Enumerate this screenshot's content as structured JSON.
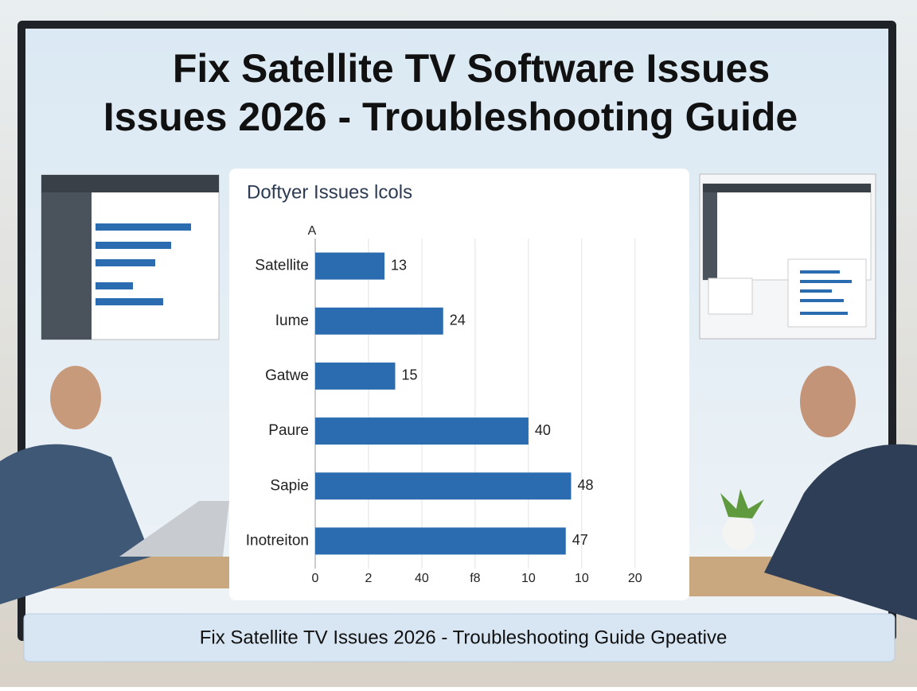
{
  "header": {
    "title_lines": [
      "Fix Satellite TV Software Issues",
      "Issues 2026 - Troubleshooting Guide"
    ]
  },
  "chart_data": {
    "type": "bar",
    "orientation": "horizontal",
    "title": "Doftyer Issues lcols",
    "ylabel": "A",
    "categories": [
      "Satellite",
      "Iume",
      "Gatwe",
      "Paure",
      "Sapie",
      "Inotreiton"
    ],
    "values": [
      13,
      24,
      15,
      40,
      48,
      47
    ],
    "color": "#2b6cb0",
    "xlim": [
      0,
      66
    ],
    "xticks": [
      0,
      {
        "value": 10,
        "label": "2"
      },
      {
        "value": 20,
        "label": "40"
      },
      {
        "value": 30,
        "label": "f8"
      },
      {
        "value": 40,
        "label": "10"
      },
      {
        "value": 50,
        "label": "10"
      },
      {
        "value": 60,
        "label": "20"
      }
    ],
    "grid": true
  },
  "footer": {
    "caption": "Fix Satellite TV Issues 2026 - Troubleshooting Guide Gpeative"
  }
}
